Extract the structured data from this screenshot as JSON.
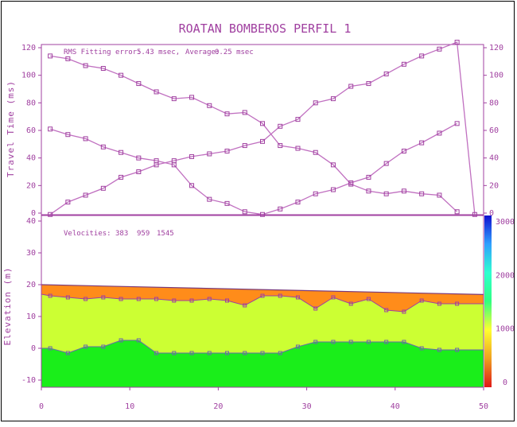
{
  "chart_data": [
    {
      "type": "line",
      "title": "ROATAN BOMBEROS PERFIL 1",
      "annotation": {
        "rms_label": "RMS Fitting error:",
        "rms_value": "5.43 msec,",
        "avg_label": "Average:",
        "avg_value": "0.25 msec"
      },
      "ylabel": "Travel Time (ms)",
      "xlim": [
        0,
        50
      ],
      "ylim": [
        0,
        120
      ],
      "yticks": [
        "0",
        "20",
        "40",
        "60",
        "80",
        "100",
        "120"
      ],
      "series": [
        {
          "x": [
            1,
            3,
            5,
            7,
            9,
            11,
            13,
            15,
            17,
            19,
            21,
            23,
            25,
            27,
            29,
            31,
            33,
            35,
            37,
            39,
            41,
            43,
            45,
            47
          ],
          "y": [
            114,
            112,
            107,
            105,
            100,
            94,
            88,
            83,
            84,
            78,
            72,
            73,
            65,
            49,
            47,
            44,
            35,
            21,
            16,
            14,
            16,
            14,
            13,
            1
          ]
        },
        {
          "x": [
            1,
            3,
            5,
            7,
            9,
            11,
            13,
            15,
            17,
            19,
            21,
            23,
            25,
            27,
            29,
            31,
            33,
            35,
            37,
            39,
            41,
            43,
            45,
            47
          ],
          "y": [
            61,
            57,
            54,
            48,
            44,
            40,
            38,
            35,
            20,
            10,
            7,
            1,
            -1,
            3,
            8,
            14,
            17,
            22,
            26,
            36,
            45,
            51,
            58,
            65
          ]
        },
        {
          "x": [
            1,
            3,
            5,
            7,
            9,
            11,
            13,
            15,
            17,
            19,
            21,
            23,
            25,
            27,
            29,
            31,
            33,
            35,
            37,
            39,
            41,
            43,
            45,
            47,
            49
          ],
          "y": [
            -1,
            8,
            13,
            18,
            26,
            30,
            35,
            38,
            41,
            43,
            45,
            49,
            52,
            63,
            68,
            80,
            83,
            92,
            94,
            101,
            108,
            114,
            119,
            124,
            -1
          ]
        }
      ]
    },
    {
      "type": "area",
      "annotation": {
        "label": "Velocities:",
        "values": [
          "383",
          "959",
          "1545"
        ]
      },
      "ylabel": "Elevation (m)",
      "xlim": [
        0,
        50
      ],
      "ylim": [
        -12,
        42
      ],
      "xticks": [
        "0",
        "10",
        "20",
        "30",
        "40",
        "50"
      ],
      "yticks": [
        "-10",
        "0",
        "10",
        "20",
        "30",
        "40"
      ],
      "surface": {
        "x": [
          0,
          50
        ],
        "y": [
          20,
          16.9
        ]
      },
      "layer1_bottom": {
        "x": [
          1,
          3,
          5,
          7,
          9,
          11,
          13,
          15,
          17,
          19,
          21,
          23,
          25,
          27,
          29,
          31,
          33,
          35,
          37,
          39,
          41,
          43,
          45,
          47,
          50
        ],
        "y": [
          16.5,
          16,
          15.5,
          16,
          15.5,
          15.5,
          15.5,
          15,
          15,
          15.5,
          15,
          13.5,
          16.5,
          16.5,
          16,
          12.5,
          16,
          14,
          15.5,
          12,
          11.5,
          15,
          14,
          14,
          14
        ]
      },
      "layer2_bottom": {
        "x": [
          0,
          1,
          3,
          5,
          7,
          9,
          11,
          13,
          15,
          17,
          19,
          21,
          23,
          25,
          27,
          29,
          31,
          33,
          35,
          37,
          39,
          41,
          43,
          45,
          47,
          50
        ],
        "y": [
          0,
          0,
          -1.5,
          0.5,
          0.5,
          2.5,
          2.5,
          -1.5,
          -1.5,
          -1.5,
          -1.5,
          -1.5,
          -1.5,
          -1.5,
          -1.5,
          0.5,
          2,
          2,
          2,
          2,
          2,
          2,
          0,
          -0.5,
          -0.5,
          -0.5
        ]
      },
      "colors": {
        "layer1": "#ff8c1a",
        "layer2": "#ccff33",
        "layer3": "#1aee1a",
        "lines": "#a040a0",
        "markers": "#6a6aaa"
      },
      "colorbar": {
        "ticks": [
          "0",
          "1000",
          "2000",
          "3000"
        ],
        "range": [
          0,
          3000
        ],
        "stops": [
          "#e01818",
          "#f0a020",
          "#ffff30",
          "#30ff80",
          "#30ffd0",
          "#30a0ff",
          "#1010d0"
        ]
      }
    }
  ]
}
